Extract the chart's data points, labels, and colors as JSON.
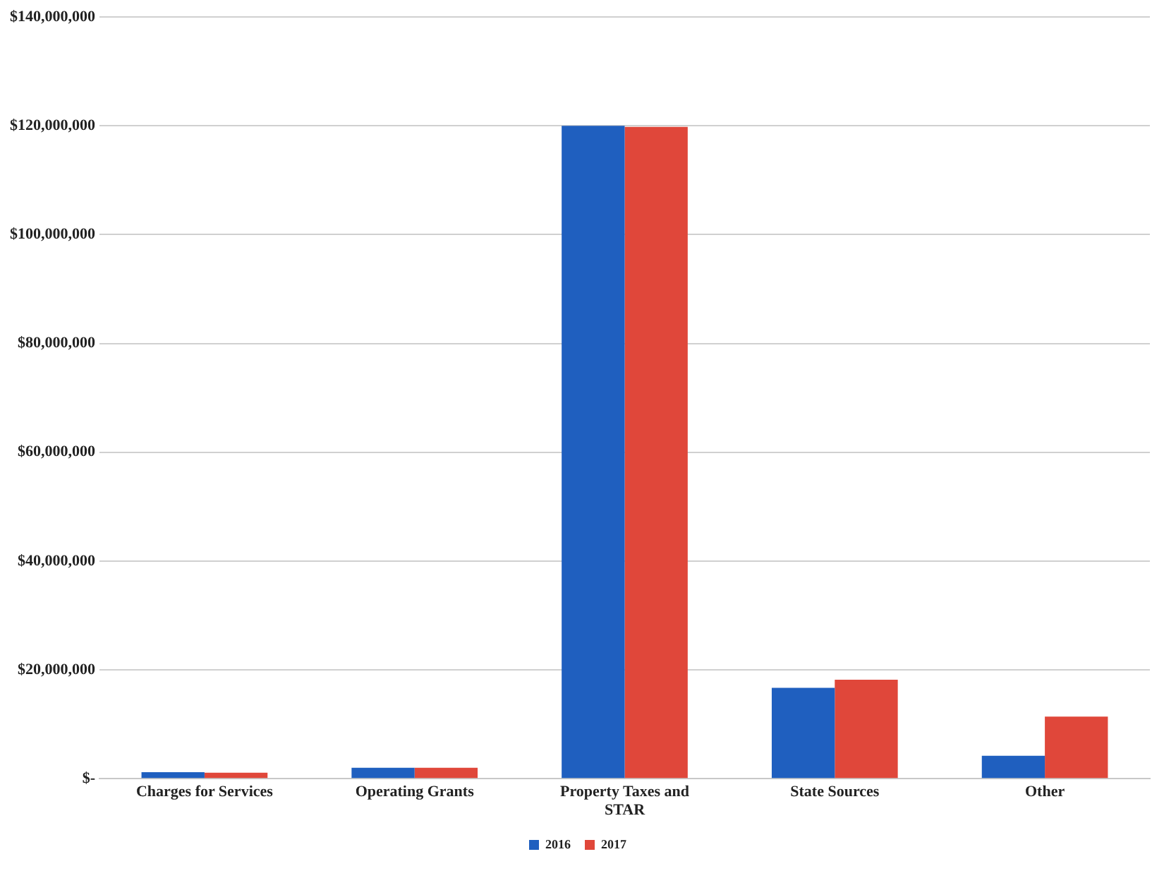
{
  "chart_data": {
    "type": "bar",
    "categories": [
      "Charges for Services",
      "Operating Grants",
      "Property Taxes and STAR",
      "State Sources",
      "Other"
    ],
    "series": [
      {
        "name": "2016",
        "color": "#1f5fbf",
        "values": [
          1200000,
          2000000,
          120000000,
          16700000,
          4200000
        ]
      },
      {
        "name": "2017",
        "color": "#e0473a",
        "values": [
          1100000,
          2000000,
          119800000,
          18200000,
          11400000
        ]
      }
    ],
    "ylim": [
      0,
      140000000
    ],
    "yticks": [
      {
        "value": 0,
        "label": "$-"
      },
      {
        "value": 20000000,
        "label": "$20,000,000"
      },
      {
        "value": 40000000,
        "label": "$40,000,000"
      },
      {
        "value": 60000000,
        "label": "$60,000,000"
      },
      {
        "value": 80000000,
        "label": "$80,000,000"
      },
      {
        "value": 100000000,
        "label": "$100,000,000"
      },
      {
        "value": 120000000,
        "label": "$120,000,000"
      },
      {
        "value": 140000000,
        "label": "$140,000,000"
      }
    ],
    "grid": "y",
    "legend": "bottom"
  }
}
